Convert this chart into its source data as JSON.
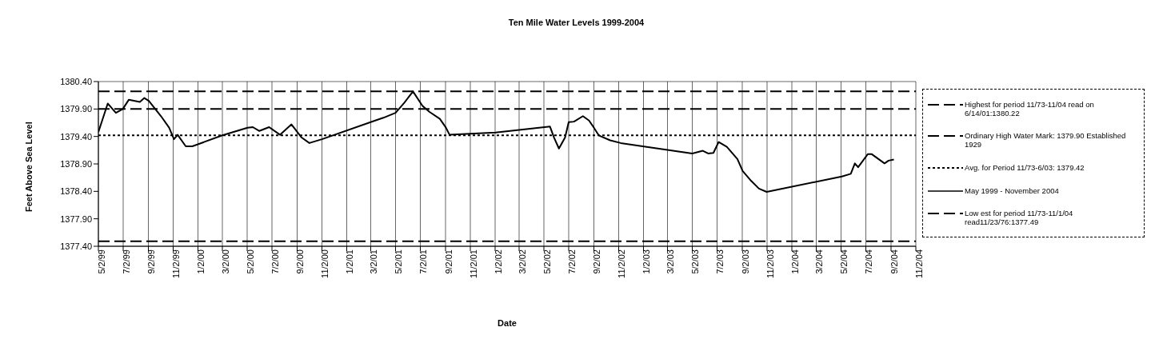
{
  "chart_data": {
    "type": "line",
    "title": "Ten Mile Water Levels 1999-2004",
    "xlabel": "Date",
    "ylabel": "Feet Above Sea Level",
    "series": [
      {
        "name": "May 1999 - November 2004",
        "color": "#000000",
        "x": [
          "1999-05-02",
          "1999-05-25",
          "1999-06-14",
          "1999-07-01",
          "1999-07-16",
          "1999-08-12",
          "1999-08-23",
          "1999-09-03",
          "1999-10-03",
          "1999-10-23",
          "1999-11-04",
          "1999-11-13",
          "1999-12-03",
          "1999-12-19",
          "2000-03-02",
          "2000-05-03",
          "2000-05-16",
          "2000-06-01",
          "2000-06-25",
          "2000-07-22",
          "2000-08-19",
          "2000-09-13",
          "2000-10-02",
          "2000-11-02",
          "2001-03-13",
          "2001-04-02",
          "2001-05-02",
          "2001-05-23",
          "2001-06-14",
          "2001-07-07",
          "2001-07-24",
          "2001-08-19",
          "2001-09-03",
          "2001-09-12",
          "2002-01-03",
          "2002-05-17",
          "2002-05-27",
          "2002-06-08",
          "2002-06-23",
          "2002-07-02",
          "2002-07-15",
          "2002-08-06",
          "2002-08-21",
          "2002-09-02",
          "2002-09-14",
          "2002-10-12",
          "2002-11-07",
          "2003-05-02",
          "2003-05-28",
          "2003-06-10",
          "2003-06-23",
          "2003-07-06",
          "2003-07-26",
          "2003-08-21",
          "2003-09-03",
          "2003-09-24",
          "2003-10-13",
          "2003-11-01",
          "2004-05-04",
          "2004-05-26",
          "2004-06-05",
          "2004-06-13",
          "2004-07-07",
          "2004-07-16",
          "2004-08-17",
          "2004-08-27",
          "2004-09-09"
        ],
        "values": [
          1379.48,
          1380.0,
          1379.83,
          1379.9,
          1380.07,
          1380.03,
          1380.1,
          1380.05,
          1379.77,
          1379.56,
          1379.35,
          1379.43,
          1379.22,
          1379.22,
          1379.42,
          1379.56,
          1379.57,
          1379.5,
          1379.57,
          1379.43,
          1379.62,
          1379.38,
          1379.28,
          1379.35,
          1379.69,
          1379.74,
          1379.83,
          1380.01,
          1380.22,
          1379.96,
          1379.85,
          1379.72,
          1379.56,
          1379.43,
          1379.47,
          1379.58,
          1379.38,
          1379.18,
          1379.38,
          1379.66,
          1379.67,
          1379.77,
          1379.69,
          1379.56,
          1379.42,
          1379.33,
          1379.28,
          1379.09,
          1379.14,
          1379.09,
          1379.1,
          1379.3,
          1379.21,
          1378.99,
          1378.77,
          1378.59,
          1378.45,
          1378.39,
          1378.67,
          1378.72,
          1378.91,
          1378.84,
          1379.08,
          1379.08,
          1378.91,
          1378.96,
          1378.98
        ]
      }
    ],
    "ref_lines": [
      {
        "axis": "y",
        "value": 1380.22,
        "label": "Highest  for period 11/73-11/04 read on 6/14/01:1380.22",
        "color": "#000000",
        "line_style": "dashed"
      },
      {
        "axis": "y",
        "value": 1379.9,
        "label": "Ordinary High Water Mark: 1379.90 Established 1929",
        "color": "#000000",
        "line_style": "dashed"
      },
      {
        "axis": "y",
        "value": 1379.42,
        "label": "Avg. for Period 11/73-6/03: 1379.42",
        "color": "#000000",
        "line_style": "dotted"
      },
      {
        "axis": "y",
        "value": 1377.49,
        "label": "Low est for period 11/73-11/1/04 read11/23/76:1377.49",
        "color": "#000000",
        "line_style": "dashed"
      }
    ],
    "xlim": [
      "1999-05-02",
      "2004-11-02"
    ],
    "xticks": [
      {
        "value": "1999-05-02",
        "label": "5/2/99"
      },
      {
        "value": "1999-07-02",
        "label": "7/2/99"
      },
      {
        "value": "1999-09-02",
        "label": "9/2/99"
      },
      {
        "value": "1999-11-02",
        "label": "11/2/99"
      },
      {
        "value": "2000-01-02",
        "label": "1/2/00"
      },
      {
        "value": "2000-03-02",
        "label": "3/2/00"
      },
      {
        "value": "2000-05-02",
        "label": "5/2/00"
      },
      {
        "value": "2000-07-02",
        "label": "7/2/00"
      },
      {
        "value": "2000-09-02",
        "label": "9/2/00"
      },
      {
        "value": "2000-11-02",
        "label": "11/2/00"
      },
      {
        "value": "2001-01-02",
        "label": "1/2/01"
      },
      {
        "value": "2001-03-02",
        "label": "3/2/01"
      },
      {
        "value": "2001-05-02",
        "label": "5/2/01"
      },
      {
        "value": "2001-07-02",
        "label": "7/2/01"
      },
      {
        "value": "2001-09-02",
        "label": "9/2/01"
      },
      {
        "value": "2001-11-02",
        "label": "11/2/01"
      },
      {
        "value": "2002-01-02",
        "label": "1/2/02"
      },
      {
        "value": "2002-03-02",
        "label": "3/2/02"
      },
      {
        "value": "2002-05-02",
        "label": "5/2/02"
      },
      {
        "value": "2002-07-02",
        "label": "7/2/02"
      },
      {
        "value": "2002-09-02",
        "label": "9/2/02"
      },
      {
        "value": "2002-11-02",
        "label": "11/2/02"
      },
      {
        "value": "2003-01-02",
        "label": "1/2/03"
      },
      {
        "value": "2003-03-02",
        "label": "3/2/03"
      },
      {
        "value": "2003-05-02",
        "label": "5/2/03"
      },
      {
        "value": "2003-07-02",
        "label": "7/2/03"
      },
      {
        "value": "2003-09-02",
        "label": "9/2/03"
      },
      {
        "value": "2003-11-02",
        "label": "11/2/03"
      },
      {
        "value": "2004-01-02",
        "label": "1/2/04"
      },
      {
        "value": "2004-03-02",
        "label": "3/2/04"
      },
      {
        "value": "2004-05-02",
        "label": "5/2/04"
      },
      {
        "value": "2004-07-02",
        "label": "7/2/04"
      },
      {
        "value": "2004-09-02",
        "label": "9/2/04"
      },
      {
        "value": "2004-11-02",
        "label": "11/2/04"
      }
    ],
    "ylim": [
      1377.4,
      1380.4
    ],
    "yticks": [
      {
        "value": 1377.4,
        "label": "1377.40"
      },
      {
        "value": 1377.9,
        "label": "1377.90"
      },
      {
        "value": 1378.4,
        "label": "1378.40"
      },
      {
        "value": 1378.9,
        "label": "1378.90"
      },
      {
        "value": 1379.4,
        "label": "1379.40"
      },
      {
        "value": 1379.9,
        "label": "1379.90"
      },
      {
        "value": 1380.4,
        "label": "1380.40"
      }
    ],
    "grid": true,
    "legend": "right",
    "marker": "none",
    "line_style": "solid"
  }
}
